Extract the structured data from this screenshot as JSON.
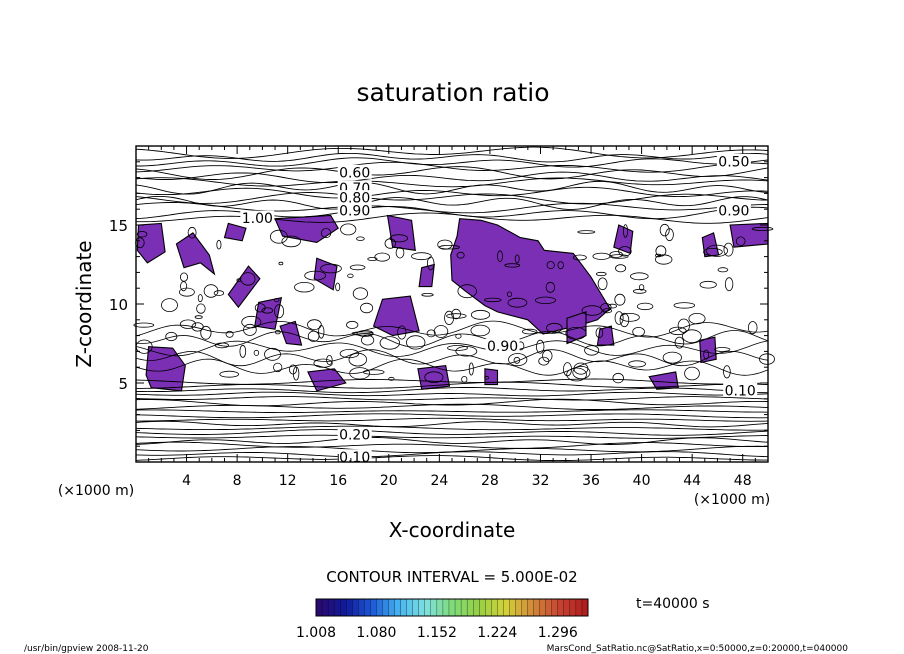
{
  "chart_data": {
    "type": "contour",
    "title": "saturation ratio",
    "xlabel": "X-coordinate",
    "ylabel": "Z-coordinate",
    "x_unit": "(×1000 m)",
    "z_unit": "(×1000 m)",
    "xlim": [
      0,
      50
    ],
    "ylim": [
      0,
      20
    ],
    "x_ticks": [
      4,
      8,
      12,
      16,
      20,
      24,
      28,
      32,
      36,
      40,
      44,
      48
    ],
    "y_ticks": [
      5,
      10,
      15
    ],
    "grid": false,
    "contour_interval_text": "CONTOUR INTERVAL = 5.000E-02",
    "time_label": "t=40000 s",
    "contour_labels": [
      {
        "text": "0.60",
        "x": 17.3,
        "z": 18.3
      },
      {
        "text": "0.70",
        "x": 17.3,
        "z": 17.3
      },
      {
        "text": "0.80",
        "x": 17.3,
        "z": 16.7
      },
      {
        "text": "0.90",
        "x": 17.3,
        "z": 15.9
      },
      {
        "text": "0.50",
        "x": 47.3,
        "z": 19.0
      },
      {
        "text": "0.90",
        "x": 47.3,
        "z": 15.9
      },
      {
        "text": "1.00",
        "x": 9.6,
        "z": 15.4
      },
      {
        "text": "0.90",
        "x": 29.0,
        "z": 7.3
      },
      {
        "text": "0.10",
        "x": 47.8,
        "z": 4.5
      },
      {
        "text": "0.20",
        "x": 17.3,
        "z": 1.7
      },
      {
        "text": "0.10",
        "x": 17.3,
        "z": 0.3
      }
    ],
    "shaded": {
      "threshold": 1.008,
      "color": "#7a2fb5",
      "regions": [
        [
          [
            0.2,
            15.0
          ],
          [
            2.0,
            15.1
          ],
          [
            2.3,
            13.3
          ],
          [
            0.9,
            12.6
          ],
          [
            0.1,
            13.4
          ]
        ],
        [
          [
            3.2,
            13.8
          ],
          [
            4.5,
            14.5
          ],
          [
            5.8,
            13.1
          ],
          [
            6.2,
            11.9
          ],
          [
            5.1,
            12.6
          ],
          [
            3.8,
            12.3
          ]
        ],
        [
          [
            11.0,
            15.4
          ],
          [
            15.4,
            15.6
          ],
          [
            16.0,
            14.8
          ],
          [
            14.3,
            13.9
          ],
          [
            11.6,
            14.3
          ]
        ],
        [
          [
            7.3,
            15.1
          ],
          [
            8.7,
            14.8
          ],
          [
            8.4,
            14.0
          ],
          [
            7.0,
            14.2
          ]
        ],
        [
          [
            8.9,
            12.4
          ],
          [
            9.8,
            11.6
          ],
          [
            8.1,
            9.8
          ],
          [
            7.3,
            10.6
          ]
        ],
        [
          [
            9.7,
            10.1
          ],
          [
            11.5,
            10.4
          ],
          [
            11.0,
            8.4
          ],
          [
            9.4,
            8.6
          ]
        ],
        [
          [
            1.0,
            7.3
          ],
          [
            2.9,
            7.2
          ],
          [
            3.9,
            6.1
          ],
          [
            3.6,
            4.5
          ],
          [
            1.2,
            4.7
          ],
          [
            0.8,
            5.5
          ]
        ],
        [
          [
            13.6,
            5.7
          ],
          [
            15.7,
            5.9
          ],
          [
            16.6,
            5.0
          ],
          [
            14.3,
            4.5
          ]
        ],
        [
          [
            11.4,
            8.6
          ],
          [
            12.6,
            8.9
          ],
          [
            13.1,
            7.4
          ],
          [
            11.9,
            7.5
          ]
        ],
        [
          [
            14.3,
            12.9
          ],
          [
            15.9,
            12.4
          ],
          [
            15.6,
            10.9
          ],
          [
            14.1,
            11.6
          ]
        ],
        [
          [
            19.9,
            15.6
          ],
          [
            21.8,
            15.3
          ],
          [
            22.1,
            13.4
          ],
          [
            20.3,
            13.6
          ]
        ],
        [
          [
            19.5,
            10.3
          ],
          [
            21.7,
            10.5
          ],
          [
            22.4,
            8.3
          ],
          [
            20.3,
            8.0
          ],
          [
            18.8,
            8.6
          ]
        ],
        [
          [
            22.6,
            12.3
          ],
          [
            23.6,
            12.5
          ],
          [
            23.4,
            11.1
          ],
          [
            22.4,
            11.1
          ]
        ],
        [
          [
            25.6,
            15.4
          ],
          [
            27.3,
            15.3
          ],
          [
            28.6,
            15.0
          ],
          [
            30.4,
            14.2
          ],
          [
            31.8,
            14.0
          ],
          [
            32.3,
            13.4
          ],
          [
            34.6,
            13.2
          ],
          [
            36.0,
            11.7
          ],
          [
            36.9,
            10.5
          ],
          [
            37.5,
            9.7
          ],
          [
            36.5,
            9.0
          ],
          [
            35.3,
            8.7
          ],
          [
            33.7,
            8.4
          ],
          [
            32.2,
            8.1
          ],
          [
            31.0,
            9.0
          ],
          [
            28.6,
            9.5
          ],
          [
            27.6,
            9.9
          ],
          [
            26.1,
            10.8
          ],
          [
            25.0,
            11.5
          ],
          [
            24.9,
            13.1
          ],
          [
            25.4,
            14.3
          ]
        ],
        [
          [
            34.1,
            9.1
          ],
          [
            35.6,
            9.5
          ],
          [
            35.6,
            8.0
          ],
          [
            34.1,
            7.5
          ]
        ],
        [
          [
            22.3,
            5.9
          ],
          [
            24.5,
            6.1
          ],
          [
            24.8,
            4.8
          ],
          [
            22.6,
            4.6
          ]
        ],
        [
          [
            27.6,
            5.9
          ],
          [
            28.6,
            5.8
          ],
          [
            28.6,
            4.9
          ],
          [
            27.6,
            4.9
          ]
        ],
        [
          [
            38.2,
            15.0
          ],
          [
            39.3,
            14.6
          ],
          [
            39.1,
            13.2
          ],
          [
            37.8,
            13.6
          ]
        ],
        [
          [
            36.7,
            8.4
          ],
          [
            37.6,
            8.6
          ],
          [
            37.8,
            7.4
          ],
          [
            36.5,
            7.4
          ]
        ],
        [
          [
            40.6,
            5.4
          ],
          [
            42.7,
            5.7
          ],
          [
            42.9,
            4.7
          ],
          [
            41.2,
            4.6
          ]
        ],
        [
          [
            44.6,
            7.7
          ],
          [
            45.8,
            7.9
          ],
          [
            45.9,
            6.5
          ],
          [
            44.7,
            6.3
          ]
        ],
        [
          [
            47.0,
            15.0
          ],
          [
            50.0,
            15.1
          ],
          [
            50.0,
            13.8
          ],
          [
            47.3,
            13.6
          ]
        ],
        [
          [
            44.8,
            14.2
          ],
          [
            45.7,
            14.5
          ],
          [
            46.1,
            13.1
          ],
          [
            45.0,
            13.0
          ]
        ]
      ]
    }
  },
  "colorbar": {
    "ticks": [
      "1.008",
      "1.080",
      "1.152",
      "1.224",
      "1.296"
    ],
    "min": 1.008,
    "max": 1.332,
    "colors": [
      "#2a0a70",
      "#101a9a",
      "#1e5ad8",
      "#46b4f0",
      "#7fe0e0",
      "#7fdc7a",
      "#96d046",
      "#d2d23a",
      "#d28c3a",
      "#c84632",
      "#b01e1e"
    ]
  },
  "footer": {
    "left": "/usr/bin/gpview  2008-11-20",
    "right": "MarsCond_SatRatio.nc@SatRatio,x=0:50000,z=0:20000,t=040000"
  }
}
